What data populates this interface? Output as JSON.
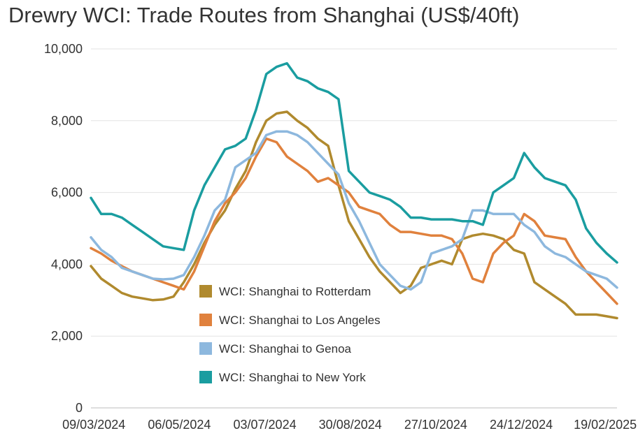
{
  "chart_data": {
    "type": "line",
    "title": "Drewry WCI: Trade Routes from Shanghai (US$/40ft)",
    "xlabel": "",
    "ylabel": "",
    "ylim": [
      0,
      10000
    ],
    "yticks": [
      0,
      2000,
      4000,
      6000,
      8000,
      10000
    ],
    "ytick_labels": [
      "0",
      "2,000",
      "4,000",
      "6,000",
      "8,000",
      "10,000"
    ],
    "x": [
      "07/03/2024",
      "14/03/2024",
      "21/03/2024",
      "28/03/2024",
      "04/04/2024",
      "11/04/2024",
      "18/04/2024",
      "25/04/2024",
      "02/05/2024",
      "09/05/2024",
      "16/05/2024",
      "23/05/2024",
      "30/05/2024",
      "06/06/2024",
      "13/06/2024",
      "20/06/2024",
      "27/06/2024",
      "04/07/2024",
      "11/07/2024",
      "18/07/2024",
      "25/07/2024",
      "01/08/2024",
      "08/08/2024",
      "15/08/2024",
      "22/08/2024",
      "29/08/2024",
      "05/09/2024",
      "12/09/2024",
      "19/09/2024",
      "26/09/2024",
      "03/10/2024",
      "10/10/2024",
      "17/10/2024",
      "24/10/2024",
      "31/10/2024",
      "07/11/2024",
      "14/11/2024",
      "21/11/2024",
      "28/11/2024",
      "05/12/2024",
      "12/12/2024",
      "19/12/2024",
      "26/12/2024",
      "02/01/2025",
      "09/01/2025",
      "16/01/2025",
      "23/01/2025",
      "30/01/2025",
      "06/02/2025",
      "13/02/2025",
      "20/02/2025",
      "27/02/2025"
    ],
    "xtick_labels": [
      "09/03/2024",
      "06/05/2024",
      "03/07/2024",
      "30/08/2024",
      "27/10/2024",
      "24/12/2024",
      "19/02/2025"
    ],
    "series": [
      {
        "name": "WCI: Shanghai to Rotterdam",
        "color": "#b08a2e",
        "values": [
          3950,
          3600,
          3400,
          3200,
          3100,
          3050,
          3000,
          3020,
          3100,
          3500,
          4000,
          4600,
          5100,
          5500,
          6100,
          6600,
          7400,
          8000,
          8200,
          8250,
          8000,
          7800,
          7500,
          7300,
          6200,
          5200,
          4700,
          4200,
          3800,
          3500,
          3200,
          3400,
          3900,
          4000,
          4100,
          4000,
          4700,
          4800,
          4850,
          4800,
          4700,
          4400,
          4300,
          3500,
          3300,
          3100,
          2900,
          2600,
          2600,
          2600,
          2550,
          2500
        ]
      },
      {
        "name": "WCI: Shanghai to Los Angeles",
        "color": "#e0813d",
        "values": [
          4450,
          4300,
          4100,
          3950,
          3800,
          3700,
          3600,
          3500,
          3400,
          3300,
          3800,
          4500,
          5200,
          5700,
          6000,
          6400,
          7000,
          7500,
          7400,
          7000,
          6800,
          6600,
          6300,
          6400,
          6200,
          6000,
          5600,
          5500,
          5400,
          5100,
          4900,
          4900,
          4850,
          4800,
          4800,
          4700,
          4300,
          3600,
          3500,
          4300,
          4600,
          4800,
          5400,
          5200,
          4800,
          4750,
          4700,
          4200,
          3800,
          3500,
          3200,
          2900
        ]
      },
      {
        "name": "WCI: Shanghai to Genoa",
        "color": "#8db8de",
        "values": [
          4750,
          4400,
          4200,
          3900,
          3800,
          3700,
          3600,
          3580,
          3600,
          3700,
          4200,
          4800,
          5500,
          5800,
          6700,
          6900,
          7100,
          7600,
          7700,
          7700,
          7600,
          7400,
          7100,
          6800,
          6500,
          5700,
          5200,
          4600,
          4000,
          3700,
          3400,
          3300,
          3500,
          4300,
          4400,
          4500,
          4700,
          5500,
          5500,
          5400,
          5400,
          5400,
          5100,
          4900,
          4500,
          4300,
          4200,
          4000,
          3800,
          3700,
          3600,
          3350
        ]
      },
      {
        "name": "WCI: Shanghai to New York",
        "color": "#1a9da0",
        "values": [
          5850,
          5400,
          5400,
          5300,
          5100,
          4900,
          4700,
          4500,
          4450,
          4400,
          5500,
          6200,
          6700,
          7200,
          7300,
          7500,
          8300,
          9300,
          9500,
          9600,
          9200,
          9100,
          8900,
          8800,
          8600,
          6600,
          6300,
          6000,
          5900,
          5800,
          5600,
          5300,
          5300,
          5250,
          5250,
          5250,
          5200,
          5200,
          5100,
          6000,
          6200,
          6400,
          7100,
          6700,
          6400,
          6300,
          6200,
          5800,
          5000,
          4600,
          4300,
          4050
        ]
      }
    ],
    "legend_position": "center-bottom",
    "grid": true
  }
}
